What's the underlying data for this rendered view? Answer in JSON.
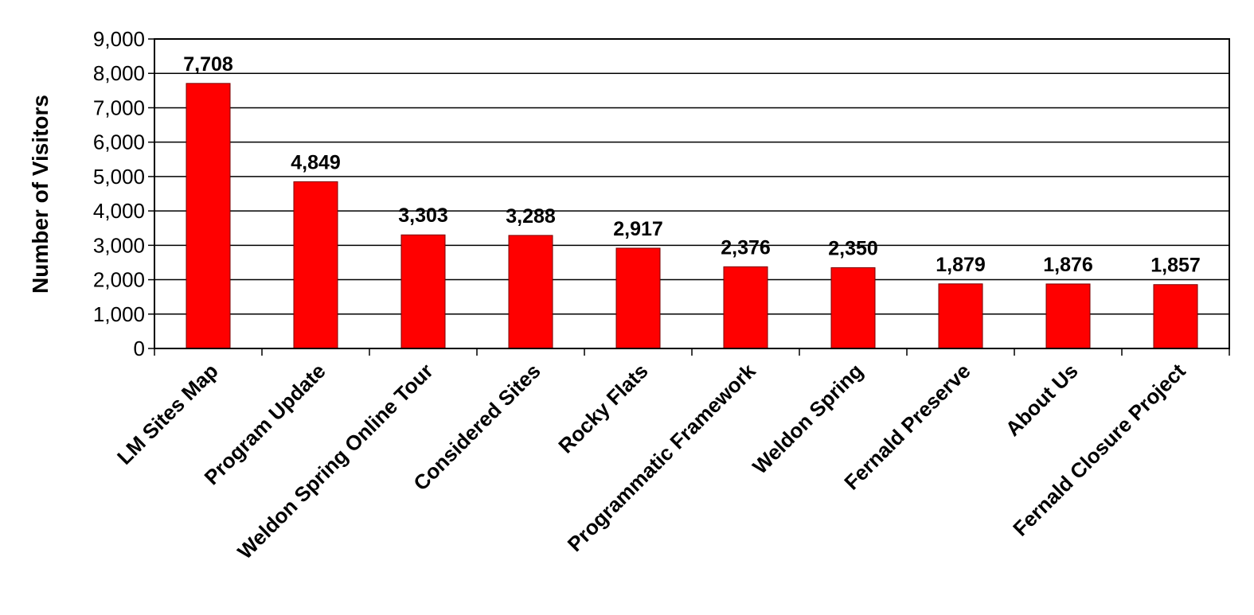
{
  "chart_data": {
    "type": "bar",
    "title": "",
    "xlabel": "",
    "ylabel": "Number of Visitors",
    "categories": [
      "LM Sites Map",
      "Program Update",
      "Weldon Spring Online Tour",
      "Considered Sites",
      "Rocky Flats",
      "Programmatic Framework",
      "Weldon Spring",
      "Fernald Preserve",
      "About Us",
      "Fernald Closure Project"
    ],
    "values": [
      7708,
      4849,
      3303,
      3288,
      2917,
      2376,
      2350,
      1879,
      1876,
      1857
    ],
    "data_labels": [
      "7,708",
      "4,849",
      "3,303",
      "3,288",
      "2,917",
      "2,376",
      "2,350",
      "1,879",
      "1,876",
      "1,857"
    ],
    "ylim": [
      0,
      9000
    ],
    "yticks": [
      0,
      1000,
      2000,
      3000,
      4000,
      5000,
      6000,
      7000,
      8000,
      9000
    ],
    "ytick_labels": [
      "0",
      "1,000",
      "2,000",
      "3,000",
      "4,000",
      "5,000",
      "6,000",
      "7,000",
      "8,000",
      "9,000"
    ],
    "grid": true,
    "legend": "none",
    "bar_color": "#ff0000"
  }
}
